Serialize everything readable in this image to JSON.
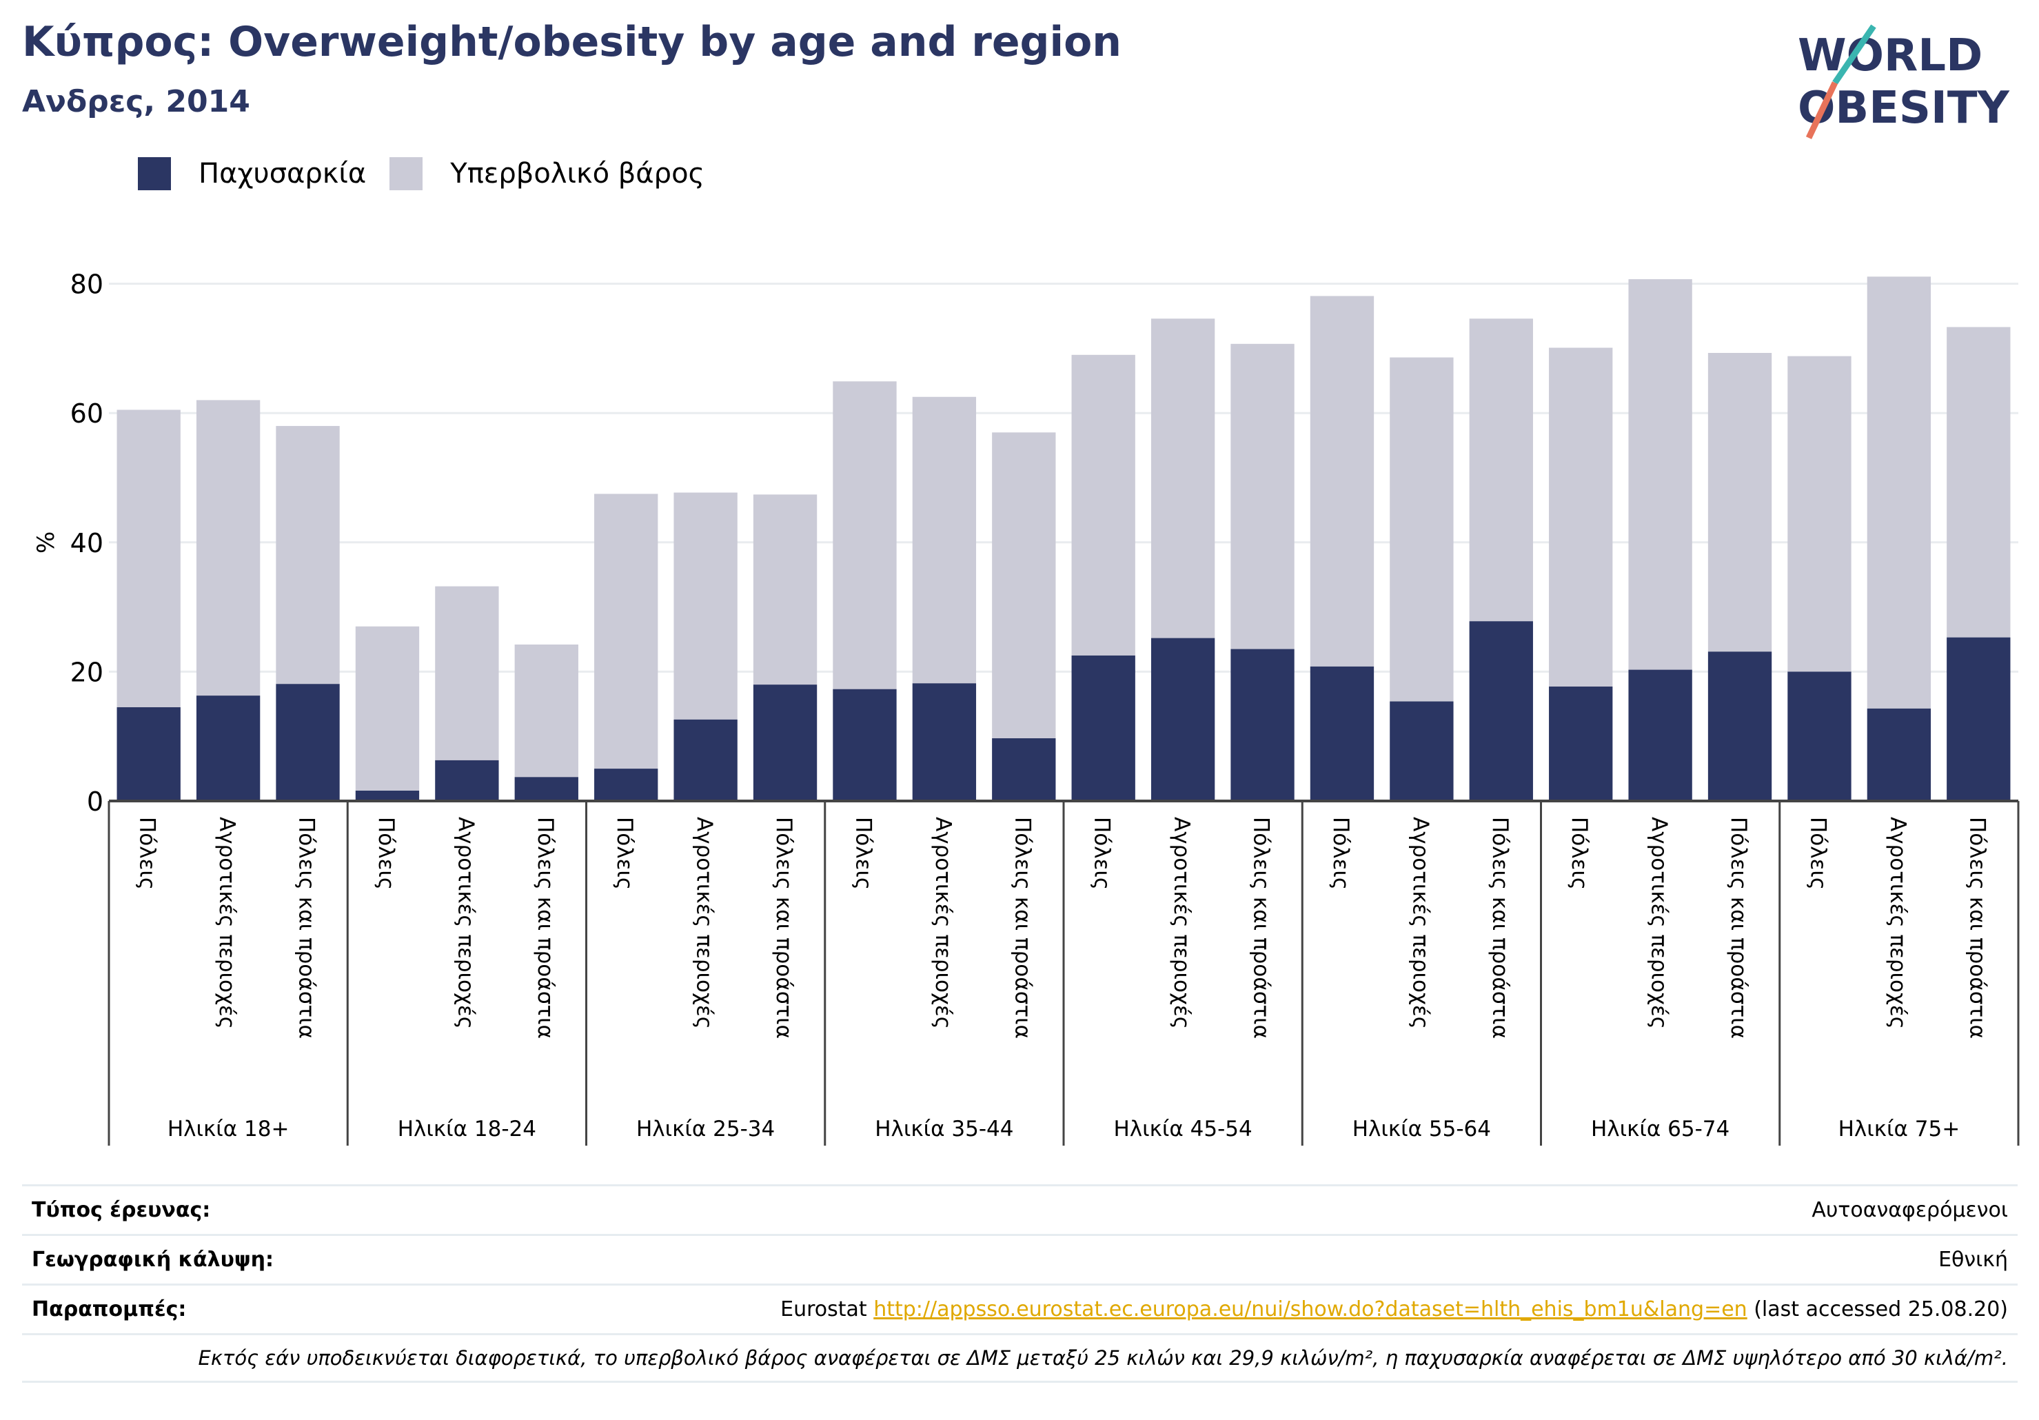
{
  "header": {
    "title": "Κύπρος: Overweight/obesity by age and region",
    "subtitle": "Ανδρες, 2014"
  },
  "logo": {
    "line1": "WORLD",
    "line2": "OBESITY"
  },
  "legend": [
    {
      "label": "Παχυσαρκία",
      "color": "#2b3663"
    },
    {
      "label": "Υπερβολικό βάρος",
      "color": "#cbcbd7"
    }
  ],
  "chart_data": {
    "type": "bar",
    "stacked": true,
    "ylabel": "%",
    "ylim": [
      0,
      88
    ],
    "yticks": [
      0,
      20,
      40,
      60,
      80
    ],
    "grid": true,
    "legend_position": "top-left",
    "groups": [
      {
        "label": "Ηλικία 18+",
        "bars": [
          {
            "label": "Πόλεις",
            "obesity": 14.5,
            "total": 60.5
          },
          {
            "label": "Αγροτικές περιοχές",
            "obesity": 16.3,
            "total": 62.0
          },
          {
            "label": "Πόλεις και προάστια",
            "obesity": 18.1,
            "total": 58.0
          }
        ]
      },
      {
        "label": "Ηλικία 18-24",
        "bars": [
          {
            "label": "Πόλεις",
            "obesity": 1.6,
            "total": 27.0
          },
          {
            "label": "Αγροτικές περιοχές",
            "obesity": 6.3,
            "total": 33.2
          },
          {
            "label": "Πόλεις και προάστια",
            "obesity": 3.7,
            "total": 24.2
          }
        ]
      },
      {
        "label": "Ηλικία 25-34",
        "bars": [
          {
            "label": "Πόλεις",
            "obesity": 5.0,
            "total": 47.5
          },
          {
            "label": "Αγροτικές περιοχές",
            "obesity": 12.6,
            "total": 47.7
          },
          {
            "label": "Πόλεις και προάστια",
            "obesity": 18.0,
            "total": 47.4
          }
        ]
      },
      {
        "label": "Ηλικία 35-44",
        "bars": [
          {
            "label": "Πόλεις",
            "obesity": 17.3,
            "total": 64.9
          },
          {
            "label": "Αγροτικές περιοχές",
            "obesity": 18.2,
            "total": 62.5
          },
          {
            "label": "Πόλεις και προάστια",
            "obesity": 9.7,
            "total": 57.0
          }
        ]
      },
      {
        "label": "Ηλικία 45-54",
        "bars": [
          {
            "label": "Πόλεις",
            "obesity": 22.5,
            "total": 69.0
          },
          {
            "label": "Αγροτικές περιοχές",
            "obesity": 25.2,
            "total": 74.6
          },
          {
            "label": "Πόλεις και προάστια",
            "obesity": 23.5,
            "total": 70.7
          }
        ]
      },
      {
        "label": "Ηλικία 55-64",
        "bars": [
          {
            "label": "Πόλεις",
            "obesity": 20.8,
            "total": 78.1
          },
          {
            "label": "Αγροτικές περιοχές",
            "obesity": 15.4,
            "total": 68.6
          },
          {
            "label": "Πόλεις και προάστια",
            "obesity": 27.8,
            "total": 74.6
          }
        ]
      },
      {
        "label": "Ηλικία 65-74",
        "bars": [
          {
            "label": "Πόλεις",
            "obesity": 17.7,
            "total": 70.1
          },
          {
            "label": "Αγροτικές περιοχές",
            "obesity": 20.3,
            "total": 80.7
          },
          {
            "label": "Πόλεις και προάστια",
            "obesity": 23.1,
            "total": 69.3
          }
        ]
      },
      {
        "label": "Ηλικία 75+",
        "bars": [
          {
            "label": "Πόλεις",
            "obesity": 20.0,
            "total": 68.8
          },
          {
            "label": "Αγροτικές περιοχές",
            "obesity": 14.3,
            "total": 81.1
          },
          {
            "label": "Πόλεις και προάστια",
            "obesity": 25.3,
            "total": 73.3
          }
        ]
      }
    ]
  },
  "info": {
    "survey_label": "Τύπος έρευνας:",
    "survey_value": "Αυτοαναφερόμενοι",
    "coverage_label": "Γεωγραφική κάλυψη:",
    "coverage_value": "Εθνική",
    "refs_label": "Παραπομπές:",
    "refs_prefix": "Eurostat ",
    "refs_link": "http://appsso.eurostat.ec.europa.eu/nui/show.do?dataset=hlth_ehis_bm1u&lang=en",
    "refs_suffix": " (last accessed 25.08.20)",
    "note": "Εκτός εάν υποδεικνύεται διαφορετικά, το υπερβολικό βάρος αναφέρεται σε ΔΜΣ μεταξύ 25 κιλών και 29,9 κιλών/m², η παχυσαρκία αναφέρεται σε ΔΜΣ υψηλότερο από 30 κιλά/m²."
  }
}
